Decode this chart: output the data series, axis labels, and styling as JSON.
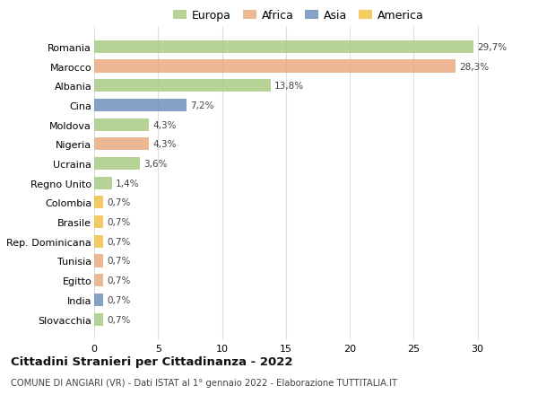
{
  "countries": [
    "Romania",
    "Marocco",
    "Albania",
    "Cina",
    "Moldova",
    "Nigeria",
    "Ucraina",
    "Regno Unito",
    "Colombia",
    "Brasile",
    "Rep. Dominicana",
    "Tunisia",
    "Egitto",
    "India",
    "Slovacchia"
  ],
  "values": [
    29.7,
    28.3,
    13.8,
    7.2,
    4.3,
    4.3,
    3.6,
    1.4,
    0.7,
    0.7,
    0.7,
    0.7,
    0.7,
    0.7,
    0.7
  ],
  "labels": [
    "29,7%",
    "28,3%",
    "13,8%",
    "7,2%",
    "4,3%",
    "4,3%",
    "3,6%",
    "1,4%",
    "0,7%",
    "0,7%",
    "0,7%",
    "0,7%",
    "0,7%",
    "0,7%",
    "0,7%"
  ],
  "continents": [
    "Europa",
    "Africa",
    "Europa",
    "Asia",
    "Europa",
    "Africa",
    "Europa",
    "Europa",
    "America",
    "America",
    "America",
    "Africa",
    "Africa",
    "Asia",
    "Europa"
  ],
  "colors": {
    "Europa": "#a8c97f",
    "Africa": "#e8a87c",
    "Asia": "#6b8cba",
    "America": "#f0c040"
  },
  "title": "Cittadini Stranieri per Cittadinanza - 2022",
  "subtitle": "COMUNE DI ANGIARI (VR) - Dati ISTAT al 1° gennaio 2022 - Elaborazione TUTTITALIA.IT",
  "xlim": [
    0,
    32
  ],
  "xticks": [
    0,
    5,
    10,
    15,
    20,
    25,
    30
  ],
  "background_color": "#ffffff",
  "grid_color": "#dddddd",
  "bar_alpha": 0.82,
  "bar_height": 0.65
}
